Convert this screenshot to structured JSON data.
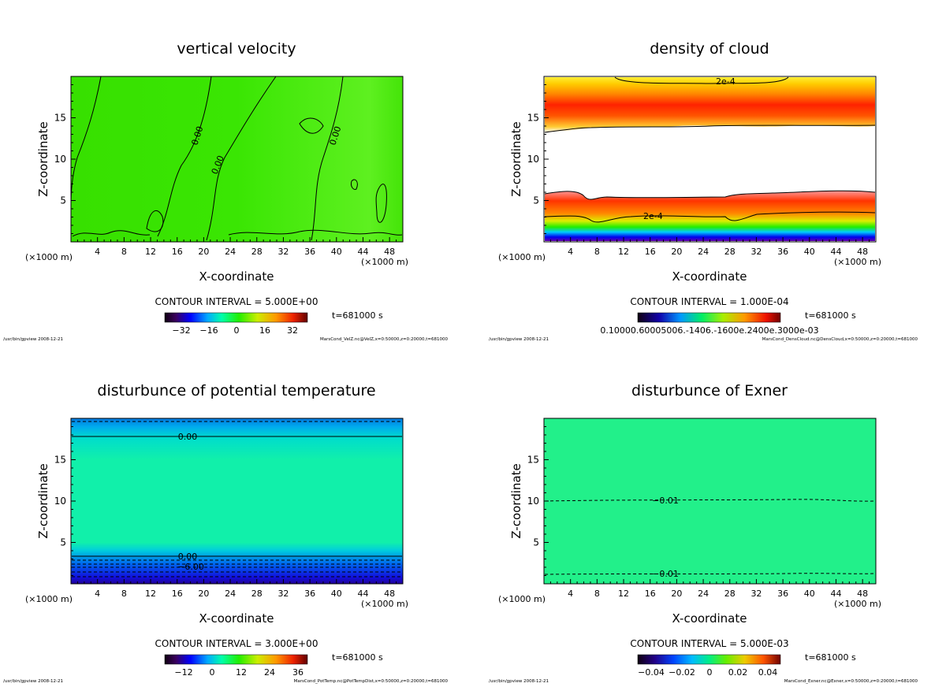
{
  "figure": {
    "panels": [
      {
        "id": "velz",
        "title": "vertical velocity",
        "xlabel": "X-coordinate",
        "ylabel": "Z-coordinate",
        "x_unit_left": "(×1000 m)",
        "x_unit_right": "(×1000 m)",
        "xticks": [
          "4",
          "8",
          "12",
          "16",
          "20",
          "24",
          "28",
          "32",
          "36",
          "40",
          "44",
          "48"
        ],
        "yticks": [
          "5",
          "10",
          "15"
        ],
        "contour_interval": "CONTOUR INTERVAL = 5.000E+00",
        "time": "t=681000 s",
        "colorbar_labels": [
          "−32",
          "−16",
          "0",
          "16",
          "32"
        ],
        "footer_left": "/usr/bin/gpview  2008-12-21",
        "footer_right": "MarsCond_VelZ.nc@VelZ,x=0:50000,z=0:20000,t=681000",
        "contour_labels": [
          "0.00",
          "0.00",
          "0.00"
        ]
      },
      {
        "id": "denscloud",
        "title": "density of cloud",
        "xlabel": "X-coordinate",
        "ylabel": "Z-coordinate",
        "x_unit_left": "(×1000 m)",
        "x_unit_right": "(×1000 m)",
        "xticks": [
          "4",
          "8",
          "12",
          "16",
          "20",
          "24",
          "28",
          "32",
          "36",
          "40",
          "44",
          "48"
        ],
        "yticks": [
          "5",
          "10",
          "15"
        ],
        "contour_interval": "CONTOUR INTERVAL = 1.000E-04",
        "time": "t=681000 s",
        "colorbar_labels": [
          "0.10000.60005006.-1406.-1600e.2400e.3000e-03"
        ],
        "footer_left": "/usr/bin/gpview  2008-12-21",
        "footer_right": "MarsCond_DensCloud.nc@DensCloud,x=0:50000,z=0:20000,t=681000",
        "contour_labels": [
          "2e-4",
          "2e-4"
        ]
      },
      {
        "id": "pottemp",
        "title": "disturbunce of potential temperature",
        "xlabel": "X-coordinate",
        "ylabel": "Z-coordinate",
        "x_unit_left": "(×1000 m)",
        "x_unit_right": "(×1000 m)",
        "xticks": [
          "4",
          "8",
          "12",
          "16",
          "20",
          "24",
          "28",
          "32",
          "36",
          "40",
          "44",
          "48"
        ],
        "yticks": [
          "5",
          "10",
          "15"
        ],
        "contour_interval": "CONTOUR INTERVAL = 3.000E+00",
        "time": "t=681000 s",
        "colorbar_labels": [
          "−12",
          "0",
          "12",
          "24",
          "36"
        ],
        "footer_left": "/usr/bin/gpview  2008-12-21",
        "footer_right": "MarsCond_PotTemp.nc@PotTempDist,x=0:50000,z=0:20000,t=681000",
        "contour_labels": [
          "0.00",
          "0.00",
          "−6.00"
        ]
      },
      {
        "id": "exner",
        "title": "disturbunce of Exner",
        "xlabel": "X-coordinate",
        "ylabel": "Z-coordinate",
        "x_unit_left": "(×1000 m)",
        "x_unit_right": "(×1000 m)",
        "xticks": [
          "4",
          "8",
          "12",
          "16",
          "20",
          "24",
          "28",
          "32",
          "36",
          "40",
          "44",
          "48"
        ],
        "yticks": [
          "5",
          "10",
          "15"
        ],
        "contour_interval": "CONTOUR INTERVAL = 5.000E-03",
        "time": "t=681000 s",
        "colorbar_labels": [
          "−0.04",
          "−0.02",
          "0",
          "0.02",
          "0.04"
        ],
        "footer_left": "/usr/bin/gpview  2008-12-21",
        "footer_right": "MarsCond_Exner.nc@Exner,x=0:50000,z=0:20000,t=681000",
        "contour_labels": [
          "−0.01",
          "−0.01"
        ]
      }
    ]
  },
  "chart_data": [
    {
      "type": "heatmap",
      "title": "vertical velocity",
      "xlabel": "X-coordinate",
      "ylabel": "Z-coordinate",
      "xlim": [
        0,
        50
      ],
      "ylim": [
        0,
        20
      ],
      "x_ticks": [
        4,
        8,
        12,
        16,
        20,
        24,
        28,
        32,
        36,
        40,
        44,
        48
      ],
      "y_ticks": [
        5,
        10,
        15
      ],
      "contour_interval": 5.0,
      "colorbar_ticks": [
        -32,
        -16,
        0,
        16,
        32
      ],
      "contour_levels_labeled": [
        0.0,
        0.0,
        0.0
      ]
    },
    {
      "type": "heatmap",
      "title": "density of cloud",
      "xlabel": "X-coordinate",
      "ylabel": "Z-coordinate",
      "xlim": [
        0,
        50
      ],
      "ylim": [
        0,
        20
      ],
      "x_ticks": [
        4,
        8,
        12,
        16,
        20,
        24,
        28,
        32,
        36,
        40,
        44,
        48
      ],
      "y_ticks": [
        5,
        10,
        15
      ],
      "contour_interval": 0.0001,
      "contour_levels_labeled": [
        0.0002,
        0.0002
      ]
    },
    {
      "type": "heatmap",
      "title": "disturbunce of potential temperature",
      "xlabel": "X-coordinate",
      "ylabel": "Z-coordinate",
      "xlim": [
        0,
        50
      ],
      "ylim": [
        0,
        20
      ],
      "x_ticks": [
        4,
        8,
        12,
        16,
        20,
        24,
        28,
        32,
        36,
        40,
        44,
        48
      ],
      "y_ticks": [
        5,
        10,
        15
      ],
      "contour_interval": 3.0,
      "colorbar_ticks": [
        -12,
        0,
        12,
        24,
        36
      ],
      "contour_levels_labeled": [
        0.0,
        0.0,
        -6.0
      ]
    },
    {
      "type": "heatmap",
      "title": "disturbunce of Exner",
      "xlabel": "X-coordinate",
      "ylabel": "Z-coordinate",
      "xlim": [
        0,
        50
      ],
      "ylim": [
        0,
        20
      ],
      "x_ticks": [
        4,
        8,
        12,
        16,
        20,
        24,
        28,
        32,
        36,
        40,
        44,
        48
      ],
      "y_ticks": [
        5,
        10,
        15
      ],
      "contour_interval": 0.005,
      "colorbar_ticks": [
        -0.04,
        -0.02,
        0,
        0.02,
        0.04
      ],
      "contour_levels_labeled": [
        -0.01,
        -0.01
      ]
    }
  ],
  "colors": {
    "velz_field": "#33e600",
    "pottemp_field": "#1af5a0",
    "exner_field": "#22f08a",
    "cloud_white": "#ffffff",
    "contour": "#000000"
  }
}
